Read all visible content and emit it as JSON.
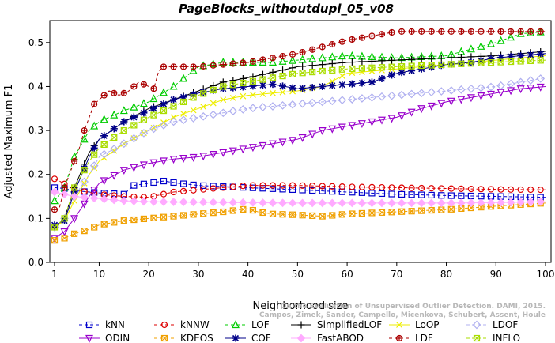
{
  "chart_data": {
    "type": "line",
    "title": "PageBlocks_withoutdupl_05_v08",
    "xlabel": "Neighborhood size",
    "ylabel": "Adjusted Maximum F1",
    "xlim": [
      1,
      100
    ],
    "ylim": [
      0.0,
      0.55
    ],
    "x_ticks": [
      1,
      10,
      20,
      30,
      40,
      50,
      60,
      70,
      80,
      90,
      100
    ],
    "y_ticks": [
      0.0,
      0.1,
      0.2,
      0.3,
      0.4,
      0.5
    ],
    "y_tick_labels": [
      "0.0",
      "0.1",
      "0.2",
      "0.3",
      "0.4",
      "0.5"
    ],
    "grid": false,
    "legend_position": "bottom",
    "watermark": [
      "Campos, Zimek, Sander, Campello, Micenkova, Schubert, Assent, Houle",
      "On the Evaluation of Unsupervised Outlier Detection. DAMI, 2015."
    ],
    "series": [
      {
        "name": "kNN",
        "color": "#0000cc",
        "marker": "square",
        "dash": "4,3",
        "points": [
          [
            1,
            0.17
          ],
          [
            3,
            0.168
          ],
          [
            5,
            0.163
          ],
          [
            10,
            0.158
          ],
          [
            15,
            0.155
          ],
          [
            17,
            0.175
          ],
          [
            20,
            0.18
          ],
          [
            23,
            0.185
          ],
          [
            26,
            0.18
          ],
          [
            30,
            0.175
          ],
          [
            40,
            0.17
          ],
          [
            50,
            0.165
          ],
          [
            60,
            0.16
          ],
          [
            70,
            0.155
          ],
          [
            80,
            0.152
          ],
          [
            90,
            0.15
          ],
          [
            100,
            0.148
          ]
        ]
      },
      {
        "name": "kNNW",
        "color": "#dd0000",
        "marker": "circle",
        "dash": "4,3",
        "points": [
          [
            1,
            0.19
          ],
          [
            2,
            0.185
          ],
          [
            5,
            0.165
          ],
          [
            10,
            0.155
          ],
          [
            15,
            0.15
          ],
          [
            20,
            0.148
          ],
          [
            25,
            0.16
          ],
          [
            30,
            0.165
          ],
          [
            40,
            0.175
          ],
          [
            50,
            0.175
          ],
          [
            60,
            0.172
          ],
          [
            70,
            0.17
          ],
          [
            80,
            0.168
          ],
          [
            90,
            0.166
          ],
          [
            100,
            0.165
          ]
        ]
      },
      {
        "name": "LOF",
        "color": "#00cc00",
        "marker": "triangle",
        "dash": "4,3",
        "points": [
          [
            1,
            0.14
          ],
          [
            3,
            0.17
          ],
          [
            5,
            0.24
          ],
          [
            8,
            0.3
          ],
          [
            10,
            0.32
          ],
          [
            15,
            0.345
          ],
          [
            20,
            0.365
          ],
          [
            25,
            0.4
          ],
          [
            30,
            0.445
          ],
          [
            35,
            0.455
          ],
          [
            40,
            0.455
          ],
          [
            45,
            0.455
          ],
          [
            50,
            0.46
          ],
          [
            60,
            0.47
          ],
          [
            70,
            0.465
          ],
          [
            80,
            0.47
          ],
          [
            90,
            0.5
          ],
          [
            95,
            0.52
          ],
          [
            100,
            0.525
          ]
        ]
      },
      {
        "name": "SimplifiedLOF",
        "color": "#000000",
        "marker": "plus",
        "dash": "",
        "points": [
          [
            1,
            0.08
          ],
          [
            3,
            0.1
          ],
          [
            5,
            0.17
          ],
          [
            8,
            0.25
          ],
          [
            10,
            0.28
          ],
          [
            15,
            0.32
          ],
          [
            20,
            0.35
          ],
          [
            25,
            0.37
          ],
          [
            30,
            0.39
          ],
          [
            35,
            0.41
          ],
          [
            40,
            0.42
          ],
          [
            50,
            0.445
          ],
          [
            60,
            0.455
          ],
          [
            70,
            0.46
          ],
          [
            80,
            0.465
          ],
          [
            90,
            0.47
          ],
          [
            100,
            0.48
          ]
        ]
      },
      {
        "name": "LoOP",
        "color": "#eeee00",
        "marker": "x",
        "dash": "",
        "points": [
          [
            1,
            0.08
          ],
          [
            3,
            0.095
          ],
          [
            5,
            0.14
          ],
          [
            8,
            0.2
          ],
          [
            10,
            0.23
          ],
          [
            15,
            0.27
          ],
          [
            20,
            0.3
          ],
          [
            25,
            0.33
          ],
          [
            30,
            0.35
          ],
          [
            35,
            0.37
          ],
          [
            40,
            0.38
          ],
          [
            50,
            0.39
          ],
          [
            55,
            0.4
          ],
          [
            60,
            0.43
          ],
          [
            70,
            0.44
          ],
          [
            80,
            0.45
          ],
          [
            90,
            0.46
          ],
          [
            100,
            0.47
          ]
        ]
      },
      {
        "name": "LDOF",
        "color": "#b0b0f0",
        "marker": "diamond",
        "dash": "4,3",
        "points": [
          [
            1,
            0.08
          ],
          [
            3,
            0.1
          ],
          [
            5,
            0.15
          ],
          [
            8,
            0.2
          ],
          [
            10,
            0.24
          ],
          [
            15,
            0.27
          ],
          [
            20,
            0.3
          ],
          [
            25,
            0.32
          ],
          [
            30,
            0.33
          ],
          [
            40,
            0.35
          ],
          [
            50,
            0.36
          ],
          [
            60,
            0.37
          ],
          [
            70,
            0.38
          ],
          [
            80,
            0.39
          ],
          [
            90,
            0.4
          ],
          [
            100,
            0.42
          ]
        ]
      },
      {
        "name": "ODIN",
        "color": "#9900cc",
        "marker": "triangle-down",
        "dash": "",
        "points": [
          [
            1,
            0.055
          ],
          [
            3,
            0.07
          ],
          [
            5,
            0.1
          ],
          [
            8,
            0.15
          ],
          [
            10,
            0.18
          ],
          [
            15,
            0.21
          ],
          [
            20,
            0.225
          ],
          [
            25,
            0.235
          ],
          [
            30,
            0.24
          ],
          [
            35,
            0.25
          ],
          [
            40,
            0.26
          ],
          [
            45,
            0.27
          ],
          [
            50,
            0.28
          ],
          [
            55,
            0.3
          ],
          [
            60,
            0.31
          ],
          [
            65,
            0.32
          ],
          [
            70,
            0.33
          ],
          [
            75,
            0.35
          ],
          [
            80,
            0.365
          ],
          [
            85,
            0.375
          ],
          [
            90,
            0.385
          ],
          [
            95,
            0.395
          ],
          [
            100,
            0.4
          ]
        ]
      },
      {
        "name": "KDEOS",
        "color": "#f0a000",
        "marker": "square-x",
        "dash": "4,3",
        "points": [
          [
            1,
            0.05
          ],
          [
            3,
            0.055
          ],
          [
            5,
            0.065
          ],
          [
            8,
            0.075
          ],
          [
            10,
            0.085
          ],
          [
            15,
            0.095
          ],
          [
            20,
            0.1
          ],
          [
            25,
            0.105
          ],
          [
            30,
            0.11
          ],
          [
            35,
            0.115
          ],
          [
            40,
            0.122
          ],
          [
            42,
            0.115
          ],
          [
            45,
            0.11
          ],
          [
            50,
            0.108
          ],
          [
            55,
            0.105
          ],
          [
            60,
            0.11
          ],
          [
            70,
            0.115
          ],
          [
            80,
            0.12
          ],
          [
            90,
            0.128
          ],
          [
            100,
            0.135
          ]
        ]
      },
      {
        "name": "COF",
        "color": "#000088",
        "marker": "asterisk",
        "dash": "",
        "points": [
          [
            1,
            0.085
          ],
          [
            3,
            0.095
          ],
          [
            5,
            0.16
          ],
          [
            8,
            0.24
          ],
          [
            10,
            0.28
          ],
          [
            15,
            0.32
          ],
          [
            20,
            0.345
          ],
          [
            25,
            0.37
          ],
          [
            30,
            0.385
          ],
          [
            35,
            0.395
          ],
          [
            40,
            0.4
          ],
          [
            45,
            0.405
          ],
          [
            50,
            0.395
          ],
          [
            55,
            0.4
          ],
          [
            60,
            0.405
          ],
          [
            65,
            0.41
          ],
          [
            70,
            0.43
          ],
          [
            75,
            0.44
          ],
          [
            80,
            0.45
          ],
          [
            85,
            0.455
          ],
          [
            90,
            0.465
          ],
          [
            95,
            0.47
          ],
          [
            100,
            0.475
          ]
        ]
      },
      {
        "name": "FastABOD",
        "color": "#ffaaff",
        "marker": "diamond-filled",
        "dash": "",
        "points": [
          [
            1,
            0.16
          ],
          [
            5,
            0.15
          ],
          [
            10,
            0.145
          ],
          [
            15,
            0.14
          ],
          [
            20,
            0.138
          ],
          [
            30,
            0.137
          ],
          [
            40,
            0.136
          ],
          [
            50,
            0.135
          ],
          [
            60,
            0.135
          ],
          [
            70,
            0.135
          ],
          [
            80,
            0.135
          ],
          [
            90,
            0.136
          ],
          [
            100,
            0.138
          ]
        ]
      },
      {
        "name": "LDF",
        "color": "#aa0000",
        "marker": "circle-plus",
        "dash": "4,3",
        "points": [
          [
            1,
            0.12
          ],
          [
            2,
            0.125
          ],
          [
            3,
            0.17
          ],
          [
            4,
            0.2
          ],
          [
            5,
            0.23
          ],
          [
            6,
            0.26
          ],
          [
            7,
            0.3
          ],
          [
            8,
            0.33
          ],
          [
            9,
            0.36
          ],
          [
            10,
            0.37
          ],
          [
            12,
            0.39
          ],
          [
            14,
            0.38
          ],
          [
            16,
            0.39
          ],
          [
            18,
            0.41
          ],
          [
            20,
            0.4
          ],
          [
            21,
            0.395
          ],
          [
            22,
            0.435
          ],
          [
            23,
            0.445
          ],
          [
            25,
            0.445
          ],
          [
            30,
            0.445
          ],
          [
            40,
            0.455
          ],
          [
            50,
            0.475
          ],
          [
            55,
            0.49
          ],
          [
            60,
            0.505
          ],
          [
            65,
            0.515
          ],
          [
            70,
            0.525
          ],
          [
            80,
            0.525
          ],
          [
            90,
            0.525
          ],
          [
            100,
            0.525
          ]
        ]
      },
      {
        "name": "INFLO",
        "color": "#aadd00",
        "marker": "square-x",
        "dash": "4,3",
        "points": [
          [
            1,
            0.08
          ],
          [
            3,
            0.1
          ],
          [
            5,
            0.17
          ],
          [
            8,
            0.23
          ],
          [
            10,
            0.26
          ],
          [
            15,
            0.3
          ],
          [
            20,
            0.33
          ],
          [
            25,
            0.355
          ],
          [
            30,
            0.38
          ],
          [
            35,
            0.4
          ],
          [
            40,
            0.41
          ],
          [
            50,
            0.43
          ],
          [
            60,
            0.44
          ],
          [
            70,
            0.445
          ],
          [
            80,
            0.45
          ],
          [
            90,
            0.455
          ],
          [
            100,
            0.46
          ]
        ]
      }
    ],
    "legend_order": [
      "kNN",
      "kNNW",
      "LOF",
      "SimplifiedLOF",
      "LoOP",
      "LDOF",
      "ODIN",
      "KDEOS",
      "COF",
      "FastABOD",
      "LDF",
      "INFLO"
    ]
  }
}
